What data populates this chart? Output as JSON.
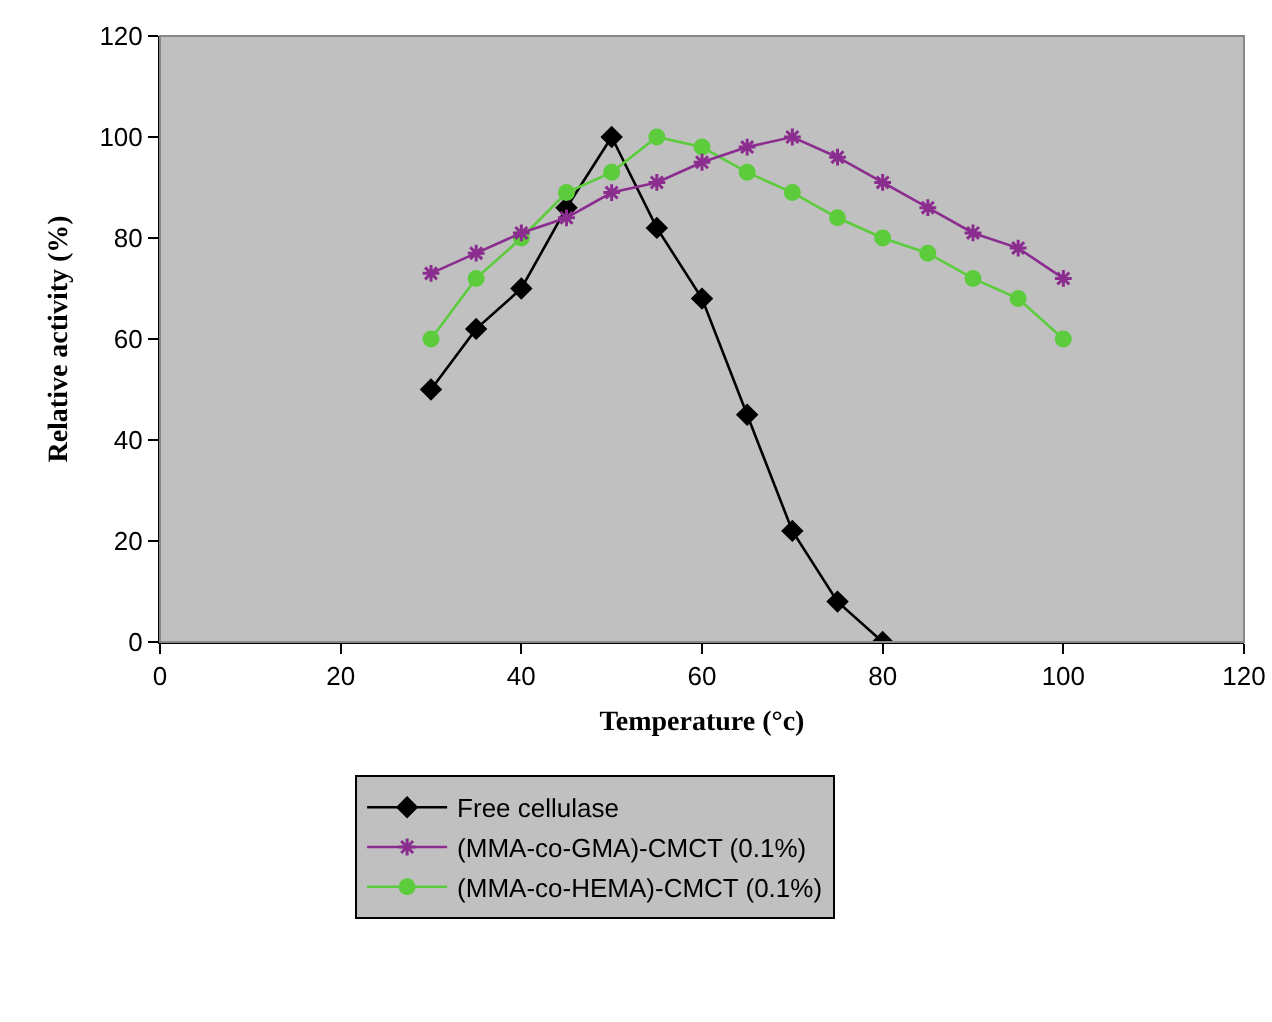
{
  "chart_data": {
    "type": "line",
    "xlabel": "Temperature (°c)",
    "ylabel": "Relative activity (%)",
    "x": [
      30,
      35,
      40,
      45,
      50,
      55,
      60,
      65,
      70,
      75,
      80,
      85,
      90,
      95,
      100
    ],
    "series": [
      {
        "name": "Free cellulase",
        "color": "#000000",
        "marker": "diamond",
        "values": [
          50,
          62,
          70,
          86,
          100,
          82,
          68,
          45,
          22,
          8,
          0,
          null,
          null,
          null,
          null
        ]
      },
      {
        "name": "(MMA-co-GMA)-CMCT (0.1%)",
        "color": "#8b2c8f",
        "marker": "cross",
        "values": [
          73,
          77,
          81,
          84,
          89,
          91,
          95,
          98,
          100,
          96,
          91,
          86,
          81,
          78,
          72
        ]
      },
      {
        "name": "(MMA-co-HEMA)-CMCT (0.1%)",
        "color": "#5ccc3c",
        "marker": "circle",
        "values": [
          60,
          72,
          80,
          89,
          93,
          100,
          98,
          93,
          89,
          84,
          80,
          77,
          72,
          68,
          60
        ]
      }
    ],
    "xlim": [
      0,
      120
    ],
    "xticks": [
      0,
      20,
      40,
      60,
      80,
      100,
      120
    ],
    "ylim": [
      0,
      120
    ],
    "yticks": [
      0,
      20,
      40,
      60,
      80,
      100,
      120
    ],
    "grid": false,
    "legend": "bottom",
    "line_style": "solid"
  }
}
